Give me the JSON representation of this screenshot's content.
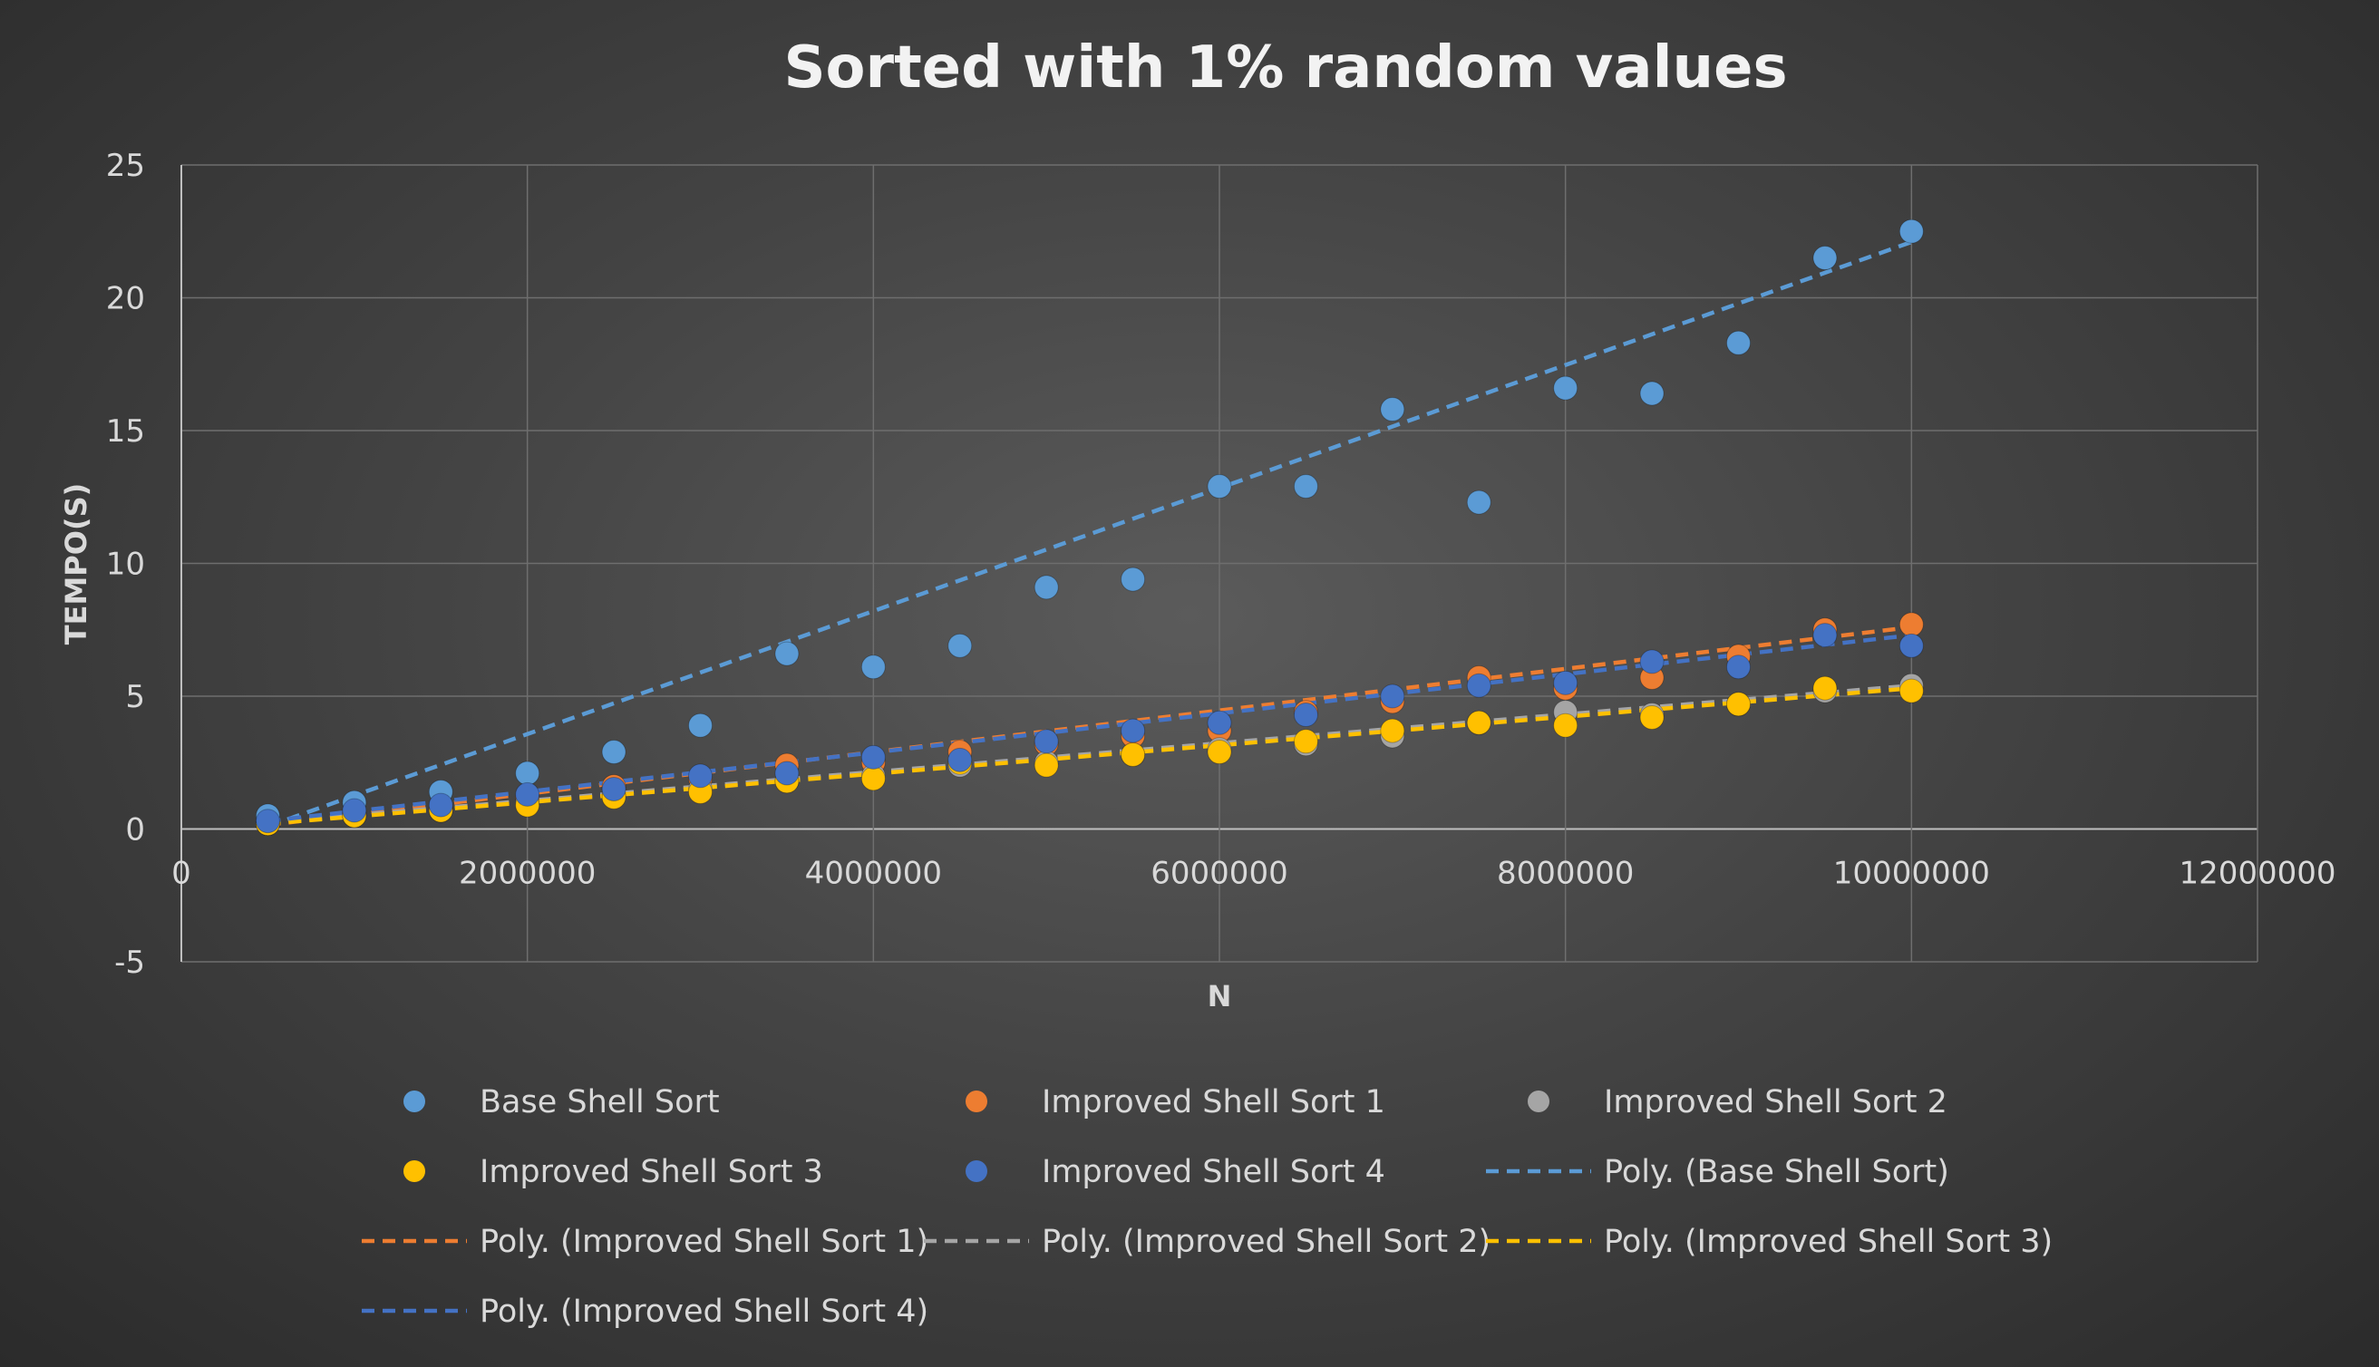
{
  "chart_data": {
    "type": "scatter",
    "title": "Sorted with 1% random values",
    "xlabel": "N",
    "ylabel": "TEMPO(S)",
    "xlim": [
      0,
      12000000
    ],
    "ylim": [
      -5,
      25
    ],
    "x_ticks": [
      "0",
      "2000000",
      "4000000",
      "6000000",
      "8000000",
      "10000000",
      "12000000"
    ],
    "y_ticks": [
      "-5",
      "0",
      "5",
      "10",
      "15",
      "20",
      "25"
    ],
    "grid": true,
    "legend_position": "bottom",
    "x": [
      500000,
      1000000,
      1500000,
      2000000,
      2500000,
      3000000,
      3500000,
      4000000,
      4500000,
      5000000,
      5500000,
      6000000,
      6500000,
      7000000,
      7500000,
      8000000,
      8500000,
      9000000,
      9500000,
      10000000
    ],
    "series": [
      {
        "name": "Base Shell Sort",
        "color": "#5b9bd5",
        "values": [
          0.5,
          1.0,
          1.4,
          2.1,
          2.9,
          3.9,
          6.6,
          6.1,
          6.9,
          9.1,
          9.4,
          12.9,
          12.9,
          15.8,
          12.3,
          16.6,
          16.4,
          18.3,
          21.5,
          22.5
        ]
      },
      {
        "name": "Improved Shell Sort 1",
        "color": "#ed7d31",
        "values": [
          0.2,
          0.6,
          0.8,
          1.2,
          1.6,
          1.9,
          2.4,
          2.5,
          2.9,
          3.2,
          3.5,
          3.7,
          4.4,
          4.8,
          5.7,
          5.3,
          5.7,
          6.5,
          7.5,
          7.7
        ]
      },
      {
        "name": "Improved Shell Sort 2",
        "color": "#a5a5a5",
        "values": [
          0.2,
          0.5,
          0.7,
          1.0,
          1.3,
          1.5,
          1.8,
          2.0,
          2.4,
          2.5,
          2.8,
          3.0,
          3.2,
          3.5,
          4.0,
          4.4,
          4.3,
          4.7,
          5.2,
          5.4
        ]
      },
      {
        "name": "Improved Shell Sort 3",
        "color": "#ffc000",
        "values": [
          0.2,
          0.5,
          0.7,
          0.9,
          1.2,
          1.4,
          1.8,
          1.9,
          2.5,
          2.4,
          2.8,
          2.9,
          3.3,
          3.7,
          4.0,
          3.9,
          4.2,
          4.7,
          5.3,
          5.2
        ]
      },
      {
        "name": "Improved Shell Sort 4",
        "color": "#4472c4",
        "values": [
          0.3,
          0.7,
          0.9,
          1.3,
          1.5,
          2.0,
          2.1,
          2.7,
          2.6,
          3.3,
          3.7,
          4.0,
          4.3,
          5.0,
          5.4,
          5.5,
          6.3,
          6.1,
          7.3,
          6.9
        ]
      }
    ],
    "trendlines": [
      {
        "name": "Poly. (Base Shell Sort)",
        "color": "#5b9bd5",
        "type": "poly",
        "values": [
          0.1,
          22.1
        ]
      },
      {
        "name": "Poly. (Improved Shell Sort 1)",
        "color": "#ed7d31",
        "type": "poly",
        "values": [
          0.15,
          7.6
        ]
      },
      {
        "name": "Poly. (Improved Shell Sort 2)",
        "color": "#a5a5a5",
        "type": "poly",
        "values": [
          0.25,
          5.4
        ]
      },
      {
        "name": "Poly. (Improved Shell Sort 3)",
        "color": "#ffc000",
        "type": "poly",
        "values": [
          0.2,
          5.3
        ]
      },
      {
        "name": "Poly. (Improved Shell Sort 4)",
        "color": "#4472c4",
        "type": "poly",
        "values": [
          0.3,
          7.3
        ]
      }
    ]
  }
}
